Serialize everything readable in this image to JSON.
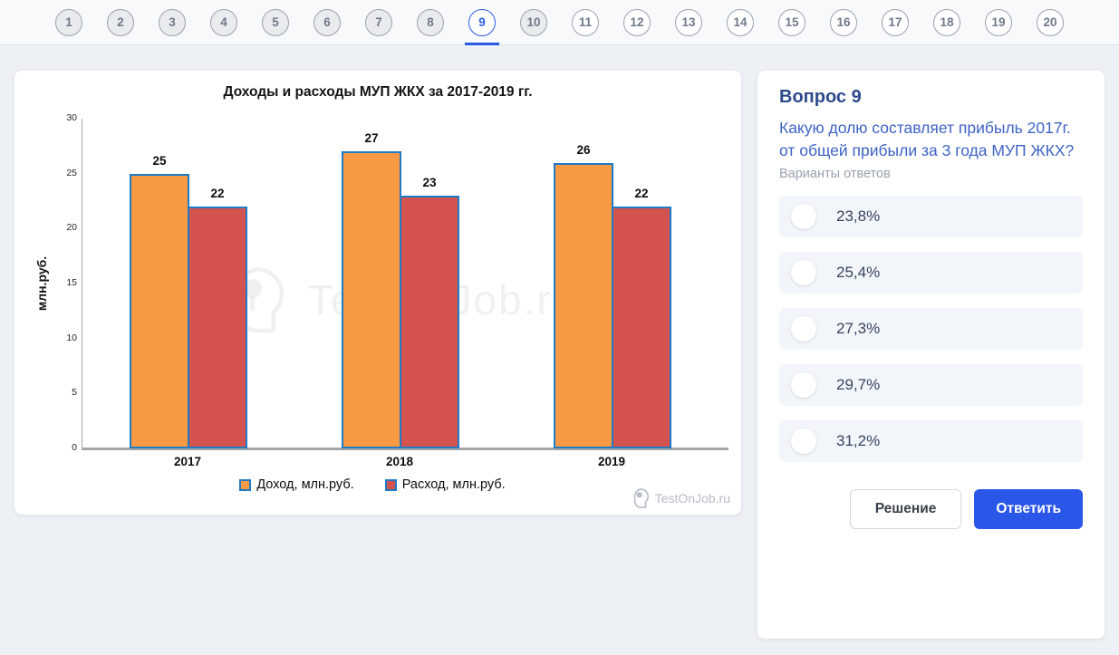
{
  "nav": {
    "items": [
      {
        "label": "1",
        "state": "filled"
      },
      {
        "label": "2",
        "state": "filled"
      },
      {
        "label": "3",
        "state": "filled"
      },
      {
        "label": "4",
        "state": "filled"
      },
      {
        "label": "5",
        "state": "filled"
      },
      {
        "label": "6",
        "state": "filled"
      },
      {
        "label": "7",
        "state": "filled"
      },
      {
        "label": "8",
        "state": "filled"
      },
      {
        "label": "9",
        "state": "active"
      },
      {
        "label": "10",
        "state": "filled"
      },
      {
        "label": "11",
        "state": "default"
      },
      {
        "label": "12",
        "state": "default"
      },
      {
        "label": "13",
        "state": "default"
      },
      {
        "label": "14",
        "state": "default"
      },
      {
        "label": "15",
        "state": "default"
      },
      {
        "label": "16",
        "state": "default"
      },
      {
        "label": "17",
        "state": "default"
      },
      {
        "label": "18",
        "state": "default"
      },
      {
        "label": "19",
        "state": "default"
      },
      {
        "label": "20",
        "state": "default"
      }
    ]
  },
  "chart_data": {
    "type": "bar",
    "title": "Доходы и расходы МУП ЖКХ за 2017-2019 гг.",
    "categories": [
      "2017",
      "2018",
      "2019"
    ],
    "series": [
      {
        "name": "Доход, млн.руб.",
        "color": "#f89a43",
        "values": [
          25,
          27,
          26
        ]
      },
      {
        "name": "Расход, млн.руб.",
        "color": "#d4534e",
        "values": [
          22,
          23,
          22
        ]
      }
    ],
    "xlabel": "",
    "ylabel": "млн.руб.",
    "ylim": [
      0,
      30
    ],
    "yticks": [
      0,
      5,
      10,
      15,
      20,
      25,
      30
    ],
    "bar_border_color": "#1f7ac5",
    "grid": false,
    "legend_position": "bottom",
    "data_labels": true
  },
  "brand": {
    "watermark": "TestOnJob.ru",
    "footer": "TestOnJob.ru"
  },
  "question": {
    "title": "Вопрос 9",
    "text": "Какую долю составляет прибыль 2017г. от общей прибыли за 3 года МУП ЖКХ?",
    "options_label": "Варианты ответов",
    "options": [
      "23,8%",
      "25,4%",
      "27,3%",
      "29,7%",
      "31,2%"
    ],
    "solution_button": "Решение",
    "answer_button": "Ответить"
  },
  "colors": {
    "accent_blue": "#2b5ce6",
    "answer_button_blue": "#2b57e8",
    "income_bar": "#f89a43",
    "expense_bar": "#d4534e",
    "bar_border": "#1f7ac5",
    "question_title": "#2d4a8d",
    "question_text": "#3e63c4",
    "option_bg": "#f2f5fa",
    "page_bg": "#edf0f5"
  }
}
